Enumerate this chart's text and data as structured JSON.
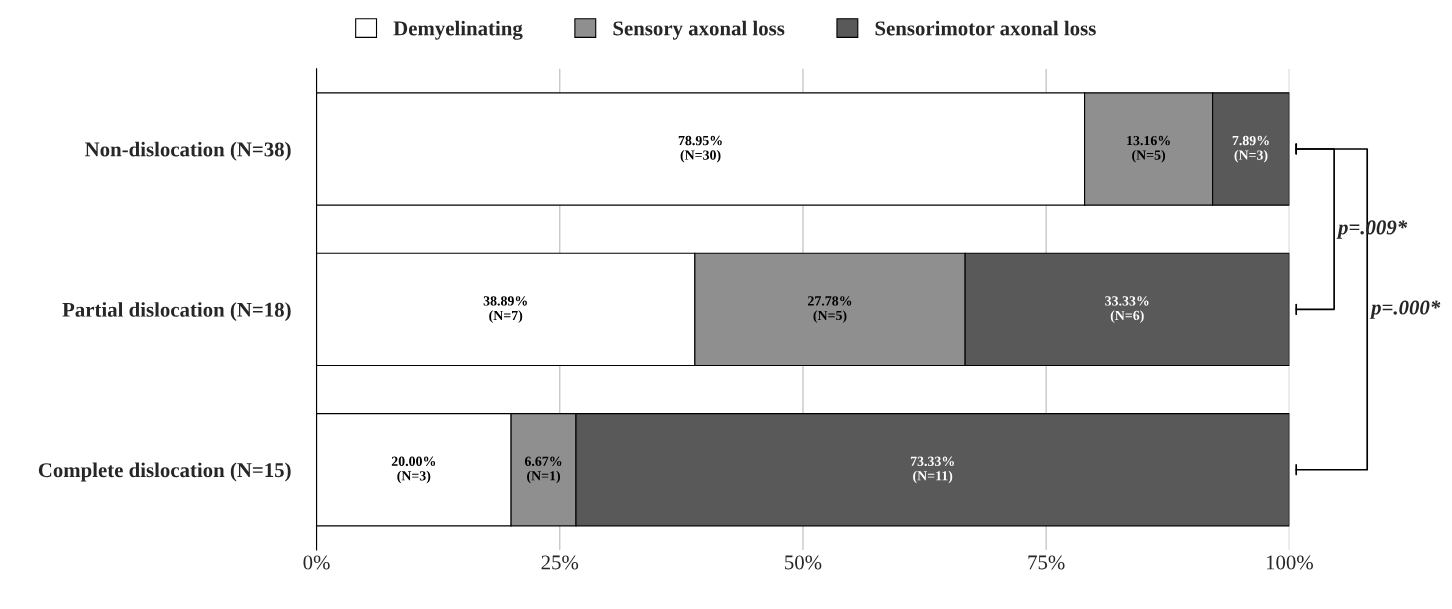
{
  "chart_data": {
    "type": "bar",
    "orientation": "horizontal",
    "stacked": true,
    "categories": [
      "Non-dislocation (N=38)",
      "Partial dislocation (N=18)",
      "Complete dislocation (N=15)"
    ],
    "series": [
      {
        "name": "Demyelinating",
        "color": "#ffffff",
        "values": [
          78.95,
          38.89,
          20.0
        ],
        "value_labels": [
          "78.95%\n(N=30)",
          "38.89%\n(N=7)",
          "20.00%\n(N=3)"
        ]
      },
      {
        "name": "Sensory axonal loss",
        "color": "#8f8f8f",
        "values": [
          13.16,
          27.78,
          6.67
        ],
        "value_labels": [
          "13.16%\n(N=5)",
          "27.78%\n(N=5)",
          "6.67%\n(N=1)"
        ]
      },
      {
        "name": "Sensorimotor axonal loss",
        "color": "#595959",
        "values": [
          7.89,
          33.33,
          73.33
        ],
        "value_labels": [
          "7.89%\n(N=3)",
          "33.33%\n(N=6)",
          "73.33%\n(N=11)"
        ]
      }
    ],
    "xlim": [
      0,
      100
    ],
    "xticks": [
      {
        "value": 0,
        "label": "0%"
      },
      {
        "value": 25,
        "label": "25%"
      },
      {
        "value": 50,
        "label": "50%"
      },
      {
        "value": 75,
        "label": "75%"
      },
      {
        "value": 100,
        "label": "100%"
      }
    ],
    "grid": "x",
    "legend": "top",
    "annotations": [
      "p=.009*",
      "p=.000*"
    ]
  }
}
